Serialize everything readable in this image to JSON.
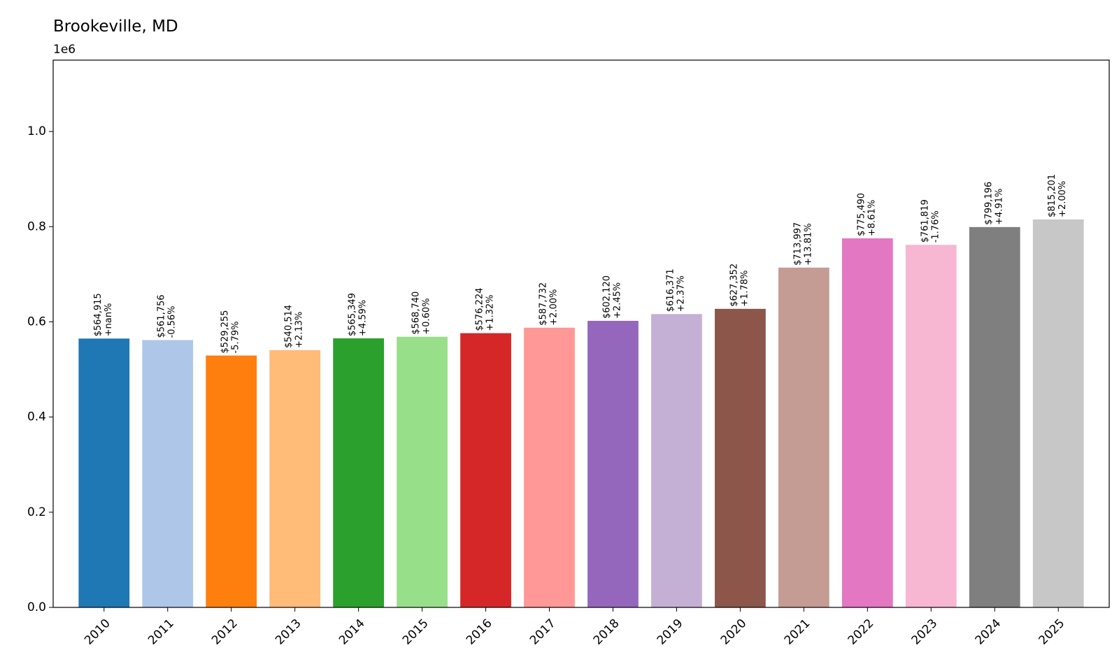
{
  "chart_data": {
    "type": "bar",
    "title": "Brookeville, MD",
    "xlabel": "",
    "ylabel": "",
    "y_offset_label": "1e6",
    "ylim": [
      0,
      1150000
    ],
    "yticks": [
      0,
      200000,
      400000,
      600000,
      800000,
      1000000
    ],
    "ytick_labels": [
      "0.0",
      "0.2",
      "0.4",
      "0.6",
      "0.8",
      "1.0"
    ],
    "grid": false,
    "legend": "none",
    "categories": [
      "2010",
      "2011",
      "2012",
      "2013",
      "2014",
      "2015",
      "2016",
      "2017",
      "2018",
      "2019",
      "2020",
      "2021",
      "2022",
      "2023",
      "2024",
      "2025"
    ],
    "values": [
      564915,
      561756,
      529255,
      540514,
      565349,
      568740,
      576224,
      587732,
      602120,
      616371,
      627352,
      713997,
      775490,
      761819,
      799196,
      815201
    ],
    "value_labels": [
      "$564,915",
      "$561,756",
      "$529,255",
      "$540,514",
      "$565,349",
      "$568,740",
      "$576,224",
      "$587,732",
      "$602,120",
      "$616,371",
      "$627,352",
      "$713,997",
      "$775,490",
      "$761,819",
      "$799,196",
      "$815,201"
    ],
    "change_labels": [
      "+nan%",
      "-0.56%",
      "-5.79%",
      "+2.13%",
      "+4.59%",
      "+0.60%",
      "+1.32%",
      "+2.00%",
      "+2.45%",
      "+2.37%",
      "+1.78%",
      "+13.81%",
      "+8.61%",
      "-1.76%",
      "+4.91%",
      "+2.00%"
    ],
    "colors": [
      "#1f77b4",
      "#aec7e8",
      "#ff7f0e",
      "#ffbb78",
      "#2ca02c",
      "#98df8a",
      "#d62728",
      "#ff9896",
      "#9467bd",
      "#c5b0d5",
      "#8c564b",
      "#c49c94",
      "#e377c2",
      "#f7b6d2",
      "#7f7f7f",
      "#c7c7c7"
    ]
  }
}
